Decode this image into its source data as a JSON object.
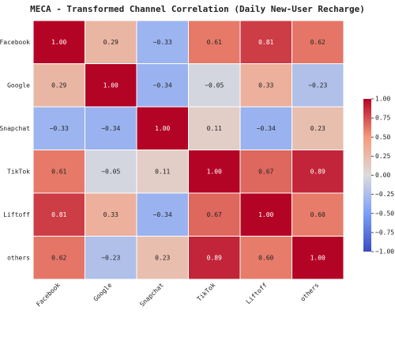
{
  "chart_data": {
    "type": "heatmap",
    "title": "MECA - Transformed Channel Correlation (Daily New-User Recharge)",
    "x_categories": [
      "Facebook",
      "Google",
      "Snapchat",
      "TikTok",
      "Liftoff",
      "others"
    ],
    "y_categories": [
      "Facebook",
      "Google",
      "Snapchat",
      "TikTok",
      "Liftoff",
      "others"
    ],
    "values": [
      [
        1,
        0.29,
        -0.33,
        0.61,
        0.81,
        0.62
      ],
      [
        0.29,
        1,
        -0.34,
        -0.05,
        0.33,
        -0.23
      ],
      [
        -0.33,
        -0.34,
        1,
        0.11,
        -0.34,
        0.23
      ],
      [
        0.61,
        -0.05,
        0.11,
        1,
        0.67,
        0.89
      ],
      [
        0.81,
        0.33,
        -0.34,
        0.67,
        1,
        0.6
      ],
      [
        0.62,
        -0.23,
        0.23,
        0.89,
        0.6,
        1
      ]
    ],
    "value_labels": [
      [
        "1.00",
        "0.29",
        "−0.33",
        "0.61",
        "0.81",
        "0.62"
      ],
      [
        "0.29",
        "1.00",
        "−0.34",
        "−0.05",
        "0.33",
        "−0.23"
      ],
      [
        "−0.33",
        "−0.34",
        "1.00",
        "0.11",
        "−0.34",
        "0.23"
      ],
      [
        "0.61",
        "−0.05",
        "0.11",
        "1.00",
        "0.67",
        "0.89"
      ],
      [
        "0.81",
        "0.33",
        "−0.34",
        "0.67",
        "1.00",
        "0.60"
      ],
      [
        "0.62",
        "−0.23",
        "0.23",
        "0.89",
        "0.60",
        "1.00"
      ]
    ],
    "zlim": [
      -1,
      1
    ],
    "zticks": [
      {
        "value": 1,
        "label": "1.00"
      },
      {
        "value": 0.75,
        "label": "0.75"
      },
      {
        "value": 0.5,
        "label": "0.50"
      },
      {
        "value": 0.25,
        "label": "0.25"
      },
      {
        "value": 0,
        "label": "0.00"
      },
      {
        "value": -0.25,
        "label": "−0.25"
      },
      {
        "value": -0.5,
        "label": "−0.50"
      },
      {
        "value": -0.75,
        "label": "−0.75"
      },
      {
        "value": -1,
        "label": "−1.00"
      }
    ],
    "colors": [
      "#3b4cc0",
      "#7b9ff9",
      "#dddcdc",
      "#f49a7b",
      "#b40426"
    ]
  }
}
